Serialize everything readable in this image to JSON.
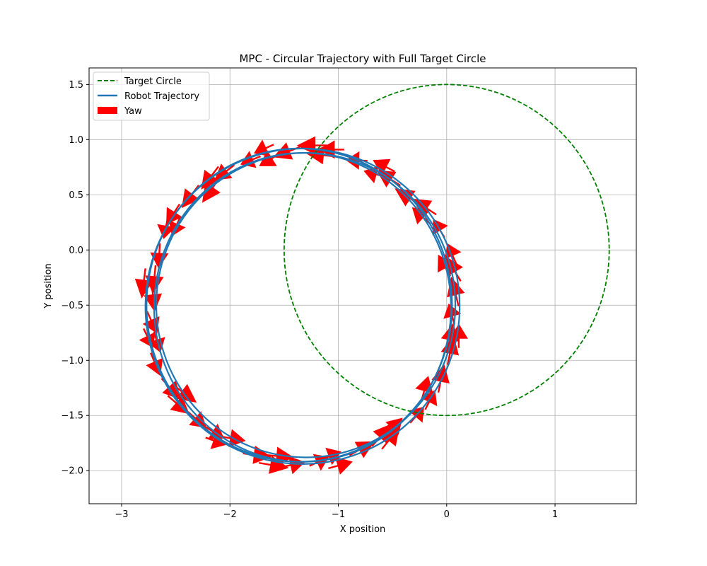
{
  "chart_data": {
    "type": "line",
    "title": "MPC - Circular Trajectory with Full Target Circle",
    "xlabel": "X position",
    "ylabel": "Y position",
    "xlim": [
      -3.3,
      1.75
    ],
    "ylim": [
      -2.3,
      1.65
    ],
    "xticks": [
      -3,
      -2,
      -1,
      0,
      1
    ],
    "xtick_labels": [
      "−3",
      "−2",
      "−1",
      "0",
      "1"
    ],
    "yticks": [
      1.5,
      1.0,
      0.5,
      0.0,
      -0.5,
      -1.0,
      -1.5,
      -2.0
    ],
    "ytick_labels": [
      "1.5",
      "1.0",
      "0.5",
      "0.0",
      "−0.5",
      "−1.0",
      "−1.5",
      "−2.0"
    ],
    "grid": true,
    "legend_position": "upper-left",
    "legend": [
      {
        "label": "Target Circle",
        "style": "dashed-line",
        "color": "#008000"
      },
      {
        "label": "Robot Trajectory",
        "style": "solid-line",
        "color": "#1f77b4"
      },
      {
        "label": "Yaw",
        "style": "patch",
        "color": "#ff0000"
      }
    ],
    "target_circle": {
      "center": [
        0.0,
        0.0
      ],
      "radius": 1.5,
      "color": "#008000",
      "dash": true
    },
    "robot_trajectory": {
      "color": "#1f77b4",
      "loops": [
        {
          "center": [
            -1.33,
            -0.52
          ],
          "rx": 1.37,
          "ry": 1.4
        },
        {
          "center": [
            -1.36,
            -0.5
          ],
          "rx": 1.41,
          "ry": 1.42
        },
        {
          "center": [
            -1.33,
            -0.51
          ],
          "rx": 1.45,
          "ry": 1.43
        },
        {
          "center": [
            -1.3,
            -0.5
          ],
          "rx": 1.38,
          "ry": 1.38
        }
      ]
    },
    "yaw_arrows": {
      "color": "#ff0000",
      "center": [
        -1.33,
        -0.51
      ],
      "radius": 1.44,
      "count": 60,
      "arrow_length": 0.28
    }
  }
}
